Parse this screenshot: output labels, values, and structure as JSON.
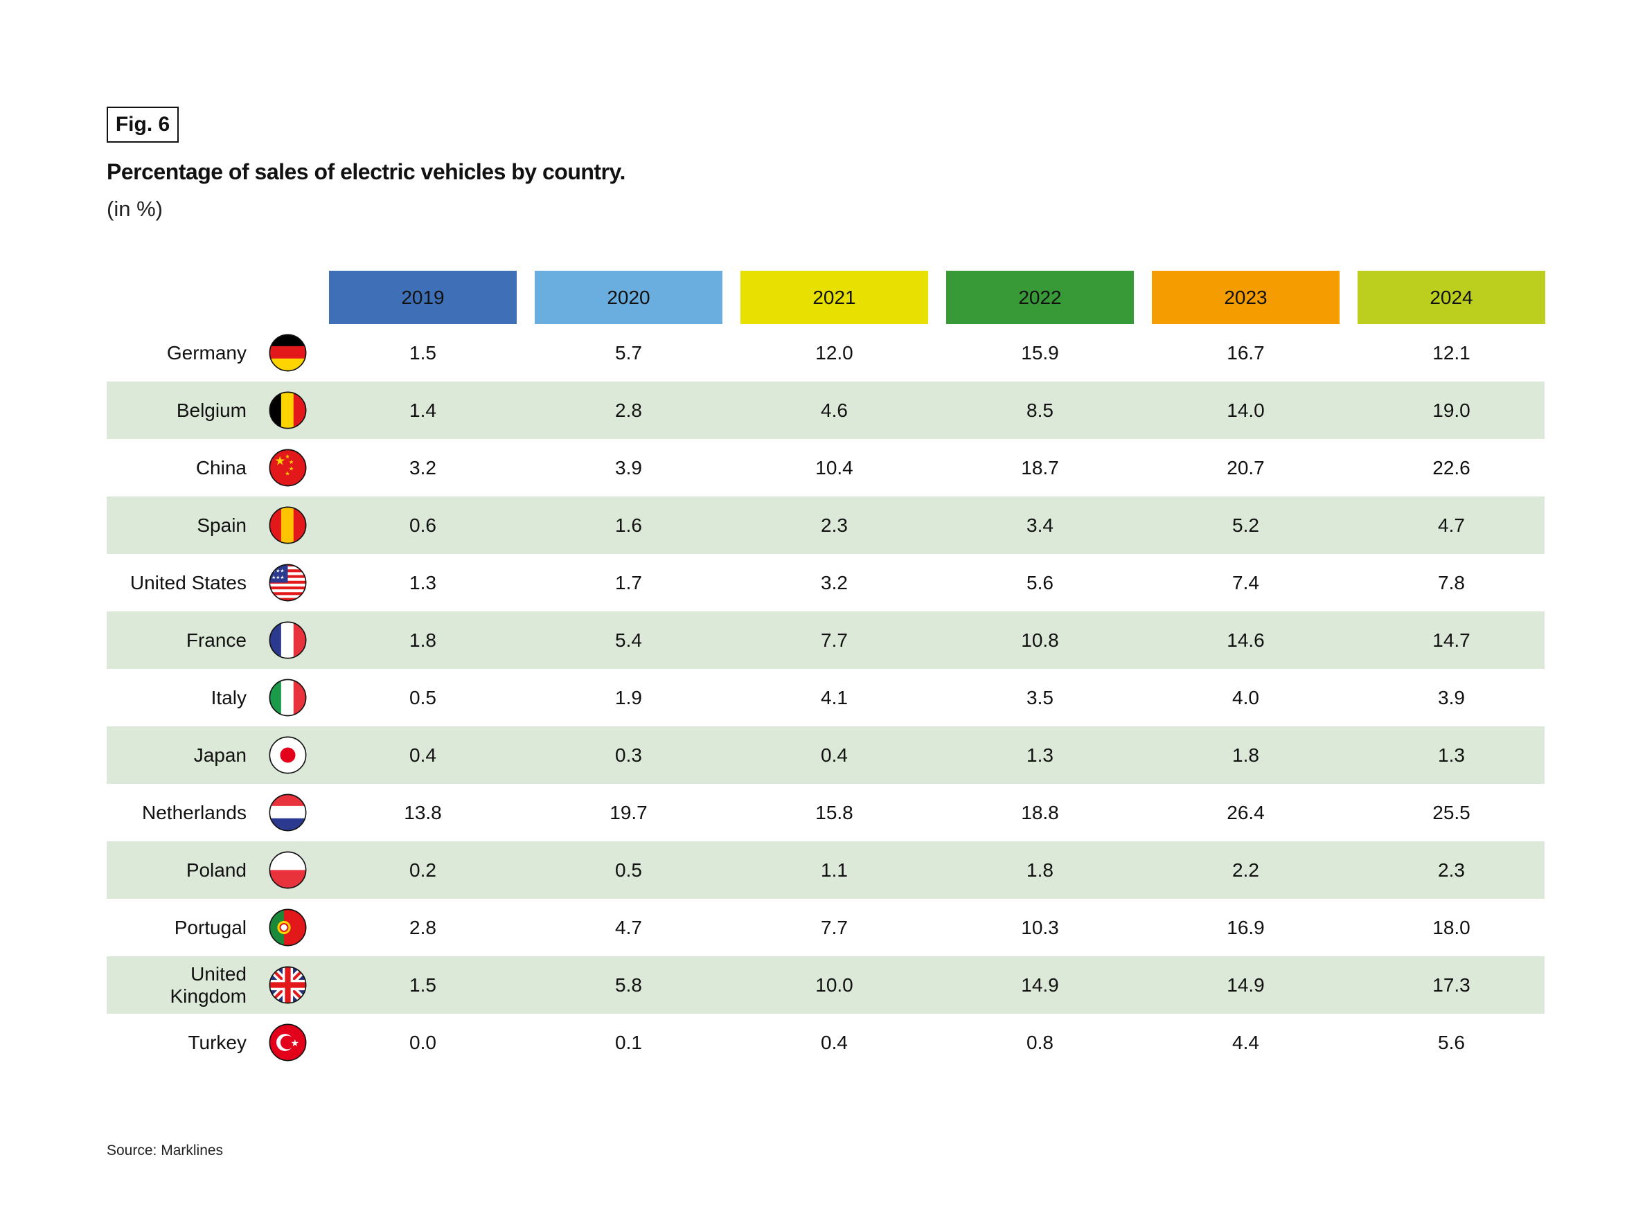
{
  "figure_label": "Fig. 6",
  "title": "Percentage of sales of electric vehicles by country.",
  "unit": "(in %)",
  "source": "Source: Marklines",
  "chart_data": {
    "type": "table",
    "title": "Percentage of sales of electric vehicles by country.",
    "unit": "%",
    "columns": [
      {
        "year": "2019",
        "color": "#3f70b7"
      },
      {
        "year": "2020",
        "color": "#6aaddf"
      },
      {
        "year": "2021",
        "color": "#e8e000"
      },
      {
        "year": "2022",
        "color": "#379a37"
      },
      {
        "year": "2023",
        "color": "#f59d00"
      },
      {
        "year": "2024",
        "color": "#bccf1f"
      }
    ],
    "rows": [
      {
        "country": "Germany",
        "flag": "de",
        "values": [
          "1.5",
          "5.7",
          "12.0",
          "15.9",
          "16.7",
          "12.1"
        ]
      },
      {
        "country": "Belgium",
        "flag": "be",
        "values": [
          "1.4",
          "2.8",
          "4.6",
          "8.5",
          "14.0",
          "19.0"
        ]
      },
      {
        "country": "China",
        "flag": "cn",
        "values": [
          "3.2",
          "3.9",
          "10.4",
          "18.7",
          "20.7",
          "22.6"
        ]
      },
      {
        "country": "Spain",
        "flag": "es",
        "values": [
          "0.6",
          "1.6",
          "2.3",
          "3.4",
          "5.2",
          "4.7"
        ]
      },
      {
        "country": "United States",
        "flag": "us",
        "values": [
          "1.3",
          "1.7",
          "3.2",
          "5.6",
          "7.4",
          "7.8"
        ]
      },
      {
        "country": "France",
        "flag": "fr",
        "values": [
          "1.8",
          "5.4",
          "7.7",
          "10.8",
          "14.6",
          "14.7"
        ]
      },
      {
        "country": "Italy",
        "flag": "it",
        "values": [
          "0.5",
          "1.9",
          "4.1",
          "3.5",
          "4.0",
          "3.9"
        ]
      },
      {
        "country": "Japan",
        "flag": "jp",
        "values": [
          "0.4",
          "0.3",
          "0.4",
          "1.3",
          "1.8",
          "1.3"
        ]
      },
      {
        "country": "Netherlands",
        "flag": "nl",
        "values": [
          "13.8",
          "19.7",
          "15.8",
          "18.8",
          "26.4",
          "25.5"
        ]
      },
      {
        "country": "Poland",
        "flag": "pl",
        "values": [
          "0.2",
          "0.5",
          "1.1",
          "1.8",
          "2.2",
          "2.3"
        ]
      },
      {
        "country": "Portugal",
        "flag": "pt",
        "values": [
          "2.8",
          "4.7",
          "7.7",
          "10.3",
          "16.9",
          "18.0"
        ]
      },
      {
        "country": "United Kingdom",
        "flag": "gb",
        "values": [
          "1.5",
          "5.8",
          "10.0",
          "14.9",
          "14.9",
          "17.3"
        ]
      },
      {
        "country": "Turkey",
        "flag": "tr",
        "values": [
          "0.0",
          "0.1",
          "0.4",
          "0.8",
          "4.4",
          "5.6"
        ]
      }
    ]
  }
}
